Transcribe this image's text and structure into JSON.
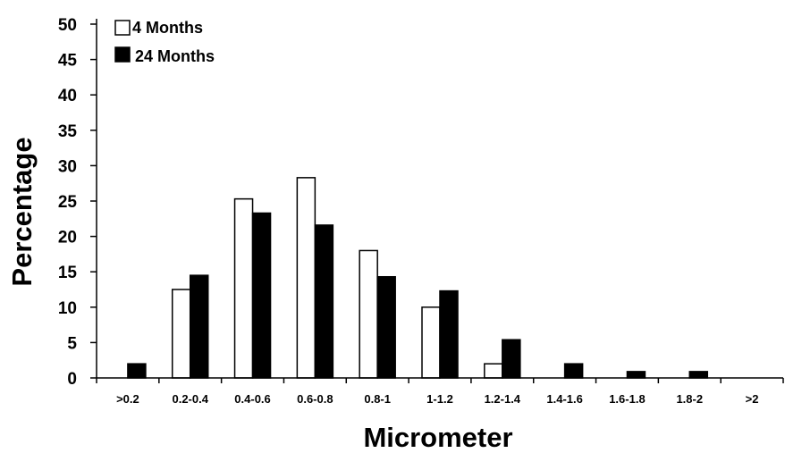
{
  "chart_data": {
    "type": "bar",
    "categories": [
      ">0.2",
      "0.2-0.4",
      "0.4-0.6",
      "0.6-0.8",
      "0.8-1",
      "1-1.2",
      "1.2-1.4",
      "1.4-1.6",
      "1.6-1.8",
      "1.8-2",
      ">2"
    ],
    "series": [
      {
        "name": "4 Months",
        "values": [
          0,
          12.5,
          25.3,
          28.3,
          18,
          10,
          2,
          0,
          0,
          0,
          0
        ],
        "color": "#ffffff"
      },
      {
        "name": "24 Months",
        "values": [
          2,
          14.5,
          23.3,
          21.6,
          14.3,
          12.3,
          5.4,
          2,
          0.9,
          0.9,
          0
        ],
        "color": "#000000"
      }
    ],
    "xlabel": "Micrometer",
    "ylabel": "Percentage",
    "ylim": [
      0,
      50
    ],
    "yticks": [
      0,
      5,
      10,
      15,
      20,
      25,
      30,
      35,
      40,
      45,
      50
    ],
    "grid": false,
    "legend_position": "top-left"
  }
}
